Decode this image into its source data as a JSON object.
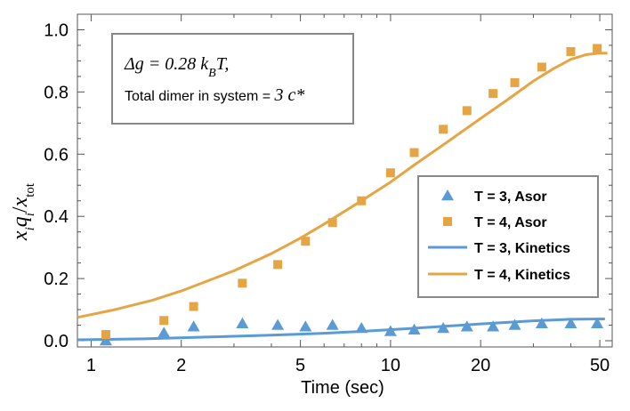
{
  "chart_data": {
    "type": "scatter",
    "xlabel": "Time (sec)",
    "xscale": "log",
    "xlim": [
      0.9,
      55
    ],
    "ylim": [
      -0.02,
      1.05
    ],
    "x_ticks": [
      1,
      2,
      5,
      10,
      20,
      50
    ],
    "y_ticks": [
      0.0,
      0.2,
      0.4,
      0.6,
      0.8,
      1.0
    ],
    "x_tick_labels": [
      "1",
      "2",
      "5",
      "10",
      "20",
      "50"
    ],
    "y_tick_labels": [
      "0.0",
      "0.2",
      "0.4",
      "0.6",
      "0.8",
      "1.0"
    ],
    "ylabel": {
      "x": "x",
      "i": "i",
      "q": "q",
      "i2": "i",
      "slash": "/",
      "xtot": "x",
      "tot": "tot"
    },
    "annotation": {
      "line1_delta_g": "Δg = 0.28",
      "line1_k": "k",
      "line1_sub": "B",
      "line1_T": "T,",
      "line2_text": "Total dimer in system = ",
      "line2_math": "3 c*"
    },
    "legend_position": "right-center",
    "series": [
      {
        "name": "T = 3, Asor",
        "kind": "scatter",
        "marker": "triangle",
        "color": "#5b9bd5",
        "points": [
          [
            1.12,
            0.0
          ],
          [
            1.75,
            0.025
          ],
          [
            2.2,
            0.045
          ],
          [
            3.2,
            0.055
          ],
          [
            4.2,
            0.05
          ],
          [
            5.2,
            0.045
          ],
          [
            6.4,
            0.05
          ],
          [
            8.0,
            0.04
          ],
          [
            10.0,
            0.03
          ],
          [
            12.0,
            0.035
          ],
          [
            15.0,
            0.04
          ],
          [
            18.0,
            0.045
          ],
          [
            22.0,
            0.045
          ],
          [
            26.0,
            0.05
          ],
          [
            32.0,
            0.055
          ],
          [
            40.0,
            0.055
          ],
          [
            49.0,
            0.055
          ]
        ]
      },
      {
        "name": "T = 4, Asor",
        "kind": "scatter",
        "marker": "square",
        "color": "#e6a544",
        "points": [
          [
            1.12,
            0.02
          ],
          [
            1.75,
            0.065
          ],
          [
            2.2,
            0.11
          ],
          [
            3.2,
            0.185
          ],
          [
            4.2,
            0.245
          ],
          [
            5.2,
            0.32
          ],
          [
            6.4,
            0.38
          ],
          [
            8.0,
            0.45
          ],
          [
            10.0,
            0.54
          ],
          [
            12.0,
            0.605
          ],
          [
            15.0,
            0.68
          ],
          [
            18.0,
            0.74
          ],
          [
            22.0,
            0.795
          ],
          [
            26.0,
            0.83
          ],
          [
            32.0,
            0.88
          ],
          [
            40.0,
            0.93
          ],
          [
            49.0,
            0.94
          ]
        ]
      },
      {
        "name": "T = 3, Kinetics",
        "kind": "line",
        "color": "#5b9bd5",
        "points": [
          [
            0.9,
            0.003
          ],
          [
            1.5,
            0.006
          ],
          [
            2.5,
            0.012
          ],
          [
            4.0,
            0.018
          ],
          [
            6.0,
            0.024
          ],
          [
            8.0,
            0.03
          ],
          [
            11.0,
            0.038
          ],
          [
            15.0,
            0.046
          ],
          [
            20.0,
            0.054
          ],
          [
            30.0,
            0.064
          ],
          [
            40.0,
            0.069
          ],
          [
            52.0,
            0.07
          ]
        ]
      },
      {
        "name": "T = 4, Kinetics",
        "kind": "line",
        "color": "#e6a544",
        "points": [
          [
            0.9,
            0.075
          ],
          [
            1.2,
            0.1
          ],
          [
            1.6,
            0.13
          ],
          [
            2.0,
            0.16
          ],
          [
            3.0,
            0.225
          ],
          [
            4.0,
            0.28
          ],
          [
            5.0,
            0.33
          ],
          [
            6.0,
            0.375
          ],
          [
            8.0,
            0.45
          ],
          [
            10.0,
            0.51
          ],
          [
            12.0,
            0.565
          ],
          [
            15.0,
            0.63
          ],
          [
            20.0,
            0.715
          ],
          [
            25.0,
            0.78
          ],
          [
            30.0,
            0.835
          ],
          [
            35.0,
            0.875
          ],
          [
            40.0,
            0.905
          ],
          [
            45.0,
            0.92
          ],
          [
            50.0,
            0.925
          ],
          [
            53.0,
            0.925
          ]
        ]
      }
    ]
  }
}
